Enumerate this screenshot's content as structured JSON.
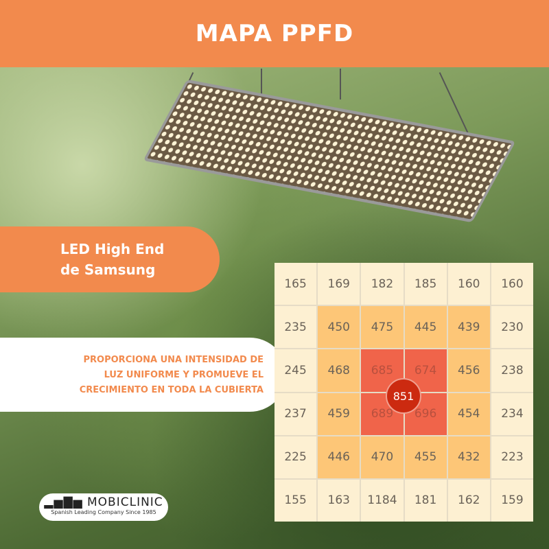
{
  "header": {
    "title": "MAPA PPFD"
  },
  "feature": {
    "line1": "LED High End",
    "line2": "de Samsung"
  },
  "claim": {
    "line1": "PROPORCIONA UNA INTENSIDAD DE",
    "line2": "LUZ UNIFORME Y PROMUEVE EL",
    "line3": "CRECIMIENTO EN TODA LA CUBIERTA"
  },
  "logo": {
    "name": "MOBICLINIC",
    "tagline": "Spanish Leading Company Since 1985"
  },
  "colors": {
    "accent": "#f28a4d",
    "low": "#fdf0d2",
    "mid": "#fdc677",
    "high": "#f0644a",
    "peak": "#cc2a10"
  },
  "chart_data": {
    "type": "heatmap",
    "title": "MAPA PPFD",
    "rows": [
      [
        165,
        169,
        182,
        185,
        160,
        160
      ],
      [
        235,
        450,
        475,
        445,
        439,
        230
      ],
      [
        245,
        468,
        685,
        674,
        456,
        238
      ],
      [
        237,
        459,
        689,
        696,
        454,
        234
      ],
      [
        225,
        446,
        470,
        455,
        432,
        223
      ],
      [
        155,
        163,
        1184,
        181,
        162,
        159
      ]
    ],
    "center_value": 851
  }
}
